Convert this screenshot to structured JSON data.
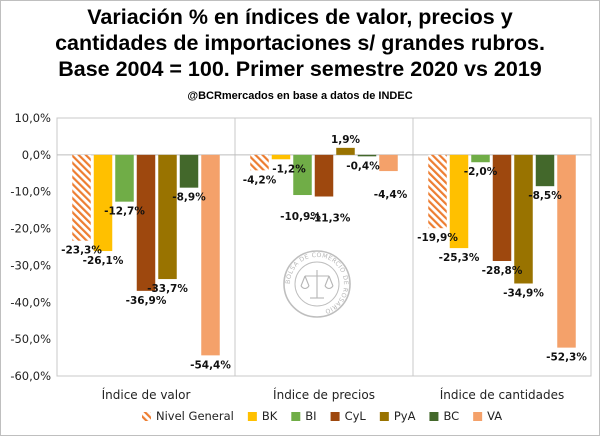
{
  "chart_data": {
    "type": "bar",
    "title_lines": [
      "Variación % en índices de valor, precios y",
      "cantidades de importaciones s/ grandes rubros.",
      "Base 2004 = 100. Primer semestre 2020 vs 2019"
    ],
    "subtitle": "@BCRmercados en base a datos de INDEC",
    "categories": [
      "Índice de valor",
      "Índice de precios",
      "Índice de cantidades"
    ],
    "ylim": [
      -60,
      10
    ],
    "yticks": [
      10,
      0,
      -10,
      -20,
      -30,
      -40,
      -50,
      -60
    ],
    "ytick_labels": [
      "10,0%",
      "0,0%",
      "-10,0%",
      "-20,0%",
      "-30,0%",
      "-40,0%",
      "-50,0%",
      "-60,0%"
    ],
    "series": [
      {
        "name": "Nivel General",
        "color": "#ed7d31",
        "pattern": "hatch",
        "values": [
          -23.3,
          -4.2,
          -19.9
        ],
        "labels": [
          "-23,3%",
          "-4,2%",
          "-19,9%"
        ]
      },
      {
        "name": "BK",
        "color": "#ffc000",
        "pattern": "solid",
        "values": [
          -26.1,
          -1.2,
          -25.3
        ],
        "labels": [
          "-26,1%",
          "-1,2%",
          "-25,3%"
        ]
      },
      {
        "name": "BI",
        "color": "#70ad47",
        "pattern": "solid",
        "values": [
          -12.7,
          -10.9,
          -2.0
        ],
        "labels": [
          "-12,7%",
          "-10,9%",
          "-2,0%"
        ]
      },
      {
        "name": "CyL",
        "color": "#9e480e",
        "pattern": "solid",
        "values": [
          -36.9,
          -11.3,
          -28.8
        ],
        "labels": [
          "-36,9%",
          "-11,3%",
          "-28,8%"
        ]
      },
      {
        "name": "PyA",
        "color": "#997300",
        "pattern": "solid",
        "values": [
          -33.7,
          1.9,
          -34.9
        ],
        "labels": [
          "-33,7%",
          "1,9%",
          "-34,9%"
        ]
      },
      {
        "name": "BC",
        "color": "#43682b",
        "pattern": "solid",
        "values": [
          -8.9,
          -0.4,
          -8.5
        ],
        "labels": [
          "-8,9%",
          "-0,4%",
          "-8,5%"
        ]
      },
      {
        "name": "VA",
        "color": "#f4a16a",
        "pattern": "solid",
        "values": [
          -54.4,
          -4.4,
          -52.3
        ],
        "labels": [
          "-54,4%",
          "-4,4%",
          "-52,3%"
        ]
      }
    ],
    "watermark": {
      "text_ring": "BOLSA DE COMERCIO DE ROSARIO",
      "icon": "scales-of-justice-seal"
    },
    "legend_position": "bottom",
    "grid": false
  }
}
